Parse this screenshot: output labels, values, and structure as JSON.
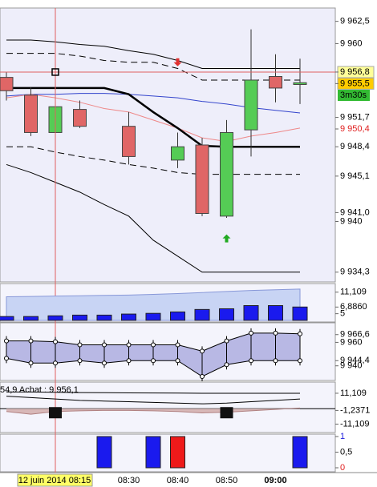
{
  "chart_data": [
    {
      "type": "candlestick",
      "categories": [
        null,
        null,
        null,
        null,
        null,
        "08:30",
        null,
        "08:40",
        null,
        "08:50",
        null,
        "09:00",
        null
      ],
      "ylim": [
        9933.2,
        9964.0
      ],
      "yticks": [
        {
          "value": 9962.5,
          "label": "9 962,5"
        },
        {
          "value": 9960,
          "label": "9 960"
        },
        {
          "value": 9956.8,
          "label": "9 956,8",
          "background": "#ffff99"
        },
        {
          "value": 9955.5,
          "label": "9 955,5",
          "background": "#ffcc00"
        },
        {
          "value": 9951.7,
          "label": "9 951,7"
        },
        {
          "value": 9950.4,
          "label": "9 950,4",
          "color": "#e02020"
        },
        {
          "value": 9948.4,
          "label": "9 948,4"
        },
        {
          "value": 9945.1,
          "label": "9 945,1"
        },
        {
          "value": 9941.0,
          "label": "9 941,0"
        },
        {
          "value": 9940,
          "label": "9 940"
        },
        {
          "value": 9934.3,
          "label": "9 934,3"
        }
      ],
      "countdown": {
        "label": "3m30s",
        "background": "#33bb33"
      },
      "crosshair": {
        "label": "12 juin 2014 08:15",
        "index": 2,
        "value": 9956.8,
        "color": "#e06060"
      },
      "candles": {
        "up_color": "#55cc55",
        "down_color": "#e06666",
        "open": [
          9956.2,
          9954.2,
          9950.0,
          9952.6,
          null,
          9950.7,
          null,
          9946.9,
          9948.6,
          9940.6,
          9950.3,
          9956.3,
          9955.4
        ],
        "high": [
          9956.8,
          9955.1,
          9953.6,
          9953.6,
          null,
          9952.3,
          null,
          9950.0,
          9949.4,
          9951.4,
          9961.6,
          9958.8,
          9958.3
        ],
        "low": [
          9953.6,
          9949.6,
          9949.4,
          9950.5,
          null,
          9946.4,
          null,
          9946.0,
          9940.6,
          9940.4,
          9947.3,
          9953.4,
          9953.2
        ],
        "close": [
          9954.7,
          9950.0,
          9952.9,
          9950.7,
          null,
          9947.3,
          null,
          9948.4,
          9940.9,
          9950.0,
          9955.9,
          9955.0,
          9955.6
        ]
      },
      "series": [
        {
          "color": "#000000",
          "width": 1,
          "values": [
            9960.4,
            9960.4,
            9960.2,
            9959.9,
            9959.7,
            9959.2,
            9958.8,
            9958.1,
            9957.2,
            9957.2,
            9957.2,
            9957.2,
            9957.2
          ]
        },
        {
          "color": "#000000",
          "width": 1,
          "values": [
            9946.4,
            9945.5,
            9944.4,
            9943.3,
            9941.9,
            9940.6,
            9937.9,
            9936.1,
            9934.3,
            9934.3,
            9934.3,
            9934.3,
            9934.3
          ]
        },
        {
          "color": "#000000",
          "width": 1,
          "dash": "8,5",
          "values": [
            9958.9,
            9958.9,
            9958.9,
            9958.6,
            9958.1,
            9957.9,
            9957.9,
            9957.2,
            9955.9,
            9955.9,
            9955.9,
            9955.9,
            9955.9
          ]
        },
        {
          "color": "#000000",
          "width": 1,
          "dash": "8,5",
          "values": [
            9948.4,
            9948.4,
            9947.8,
            9947.3,
            9946.9,
            9946.4,
            9946.0,
            9945.5,
            9945.3,
            9945.3,
            9945.3,
            9945.3,
            9945.3
          ]
        },
        {
          "color": "#3344cc",
          "width": 1,
          "values": [
            9954.1,
            9954.3,
            9954.3,
            9954.4,
            9954.4,
            9954.3,
            9954.1,
            9953.9,
            9953.5,
            9953.2,
            9952.8,
            9952.5,
            9952.2
          ]
        },
        {
          "color": "#ee8888",
          "width": 1,
          "values": [
            9953.9,
            9954.3,
            9953.9,
            9953.4,
            9952.7,
            9952.3,
            9951.4,
            9950.5,
            9949.4,
            9949.0,
            9949.6,
            9950.0,
            9950.5
          ]
        },
        {
          "color": "#000000",
          "width": 2.5,
          "values": [
            9955.0,
            9955.0,
            9955.0,
            9955.0,
            9955.0,
            9954.3,
            9952.3,
            9950.5,
            9948.5,
            9948.4,
            9948.4,
            9948.4,
            9948.4
          ]
        }
      ],
      "signals": [
        {
          "index": 7,
          "value": 9957.9,
          "color": "#e03030",
          "direction": "down"
        },
        {
          "index": 9,
          "value": 9938.1,
          "color": "#22aa22",
          "direction": "up"
        }
      ]
    },
    {
      "type": "bar",
      "ylim": [
        3.1,
        13.1
      ],
      "yticks": [
        {
          "value": 11.109,
          "label": "11,109"
        },
        {
          "value": 6.886,
          "label": "6,8860"
        },
        5
      ],
      "area": {
        "color": "#c8d4f4",
        "values": [
          9.8,
          9.9,
          10.0,
          10.1,
          10.2,
          10.3,
          10.5,
          10.7,
          11.0,
          11.3,
          11.6,
          11.8,
          12.0
        ]
      },
      "series": [
        {
          "color": "#1a1aee",
          "values": [
            4.2,
            4.2,
            4.4,
            4.6,
            4.6,
            4.9,
            5.1,
            5.5,
            6.2,
            6.4,
            7.3,
            7.3,
            6.9
          ]
        }
      ]
    },
    {
      "type": "band",
      "ylim": [
        9928.2,
        9975.3
      ],
      "yticks": [
        {
          "value": 9966.6,
          "label": "9 966,6"
        },
        {
          "value": 9960,
          "label": "9 960"
        },
        {
          "value": 9944.4,
          "label": "9 944,4"
        },
        {
          "value": 9940,
          "label": "9 940"
        }
      ],
      "fill": "#b8b8e4",
      "upper": [
        9961.2,
        9961.2,
        9960.5,
        9957.9,
        9957.9,
        9957.9,
        9957.9,
        9957.9,
        9952.5,
        9961.2,
        9967.9,
        9967.9,
        9967.3
      ],
      "lower": [
        9946.4,
        9942.4,
        9942.4,
        9944.4,
        9942.4,
        9944.4,
        9944.4,
        9944.4,
        9930.9,
        9941.0,
        9944.4,
        9944.4,
        9944.4
      ]
    },
    {
      "type": "line",
      "ylim": [
        -16,
        18
      ],
      "yticks": [
        {
          "value": 11.109,
          "label": "11,109"
        },
        {
          "value": -1.2371,
          "label": "-1,2371"
        },
        {
          "value": -11.109,
          "label": "-11,109"
        }
      ],
      "annotation": "54,9 Achat : 9 956,1",
      "series": [
        {
          "color": "#000000",
          "values": [
            12.0,
            12.0,
            11.8,
            11.6,
            11.5,
            11.4,
            11.3,
            11.2,
            11.1,
            11.1,
            11.1,
            11.1,
            11.1
          ]
        },
        {
          "color": "#000000",
          "values": [
            9.0,
            8.0,
            7.0,
            6.0,
            5.5,
            5.0,
            4.5,
            4.0,
            3.5,
            4.0,
            5.0,
            6.0,
            7.0
          ]
        },
        {
          "color": "#b08080",
          "fill": "#d8b8b8",
          "values": [
            -2.0,
            -4.0,
            -2.0,
            -1.5,
            -1.2,
            -1.2,
            -1.5,
            -2.0,
            -3.0,
            -2.5,
            -1.5,
            -0.5,
            0.5
          ]
        }
      ]
    },
    {
      "type": "bar",
      "ylim": [
        0,
        1
      ],
      "yticks": [
        {
          "value": 1,
          "label": "1",
          "color": "#2020dd"
        },
        {
          "value": 0.5,
          "label": "0,5"
        },
        {
          "value": 0,
          "label": "0",
          "color": "#e02020"
        }
      ],
      "series": [
        {
          "color": "#1a1aee",
          "values": [
            0,
            0,
            0,
            0,
            1,
            0,
            1,
            0,
            0,
            0,
            0,
            0,
            1
          ]
        },
        {
          "color": "#ee1a1a",
          "values": [
            0,
            0,
            0,
            0,
            0,
            0,
            0,
            1,
            0,
            0,
            0,
            0,
            0
          ]
        }
      ]
    }
  ]
}
